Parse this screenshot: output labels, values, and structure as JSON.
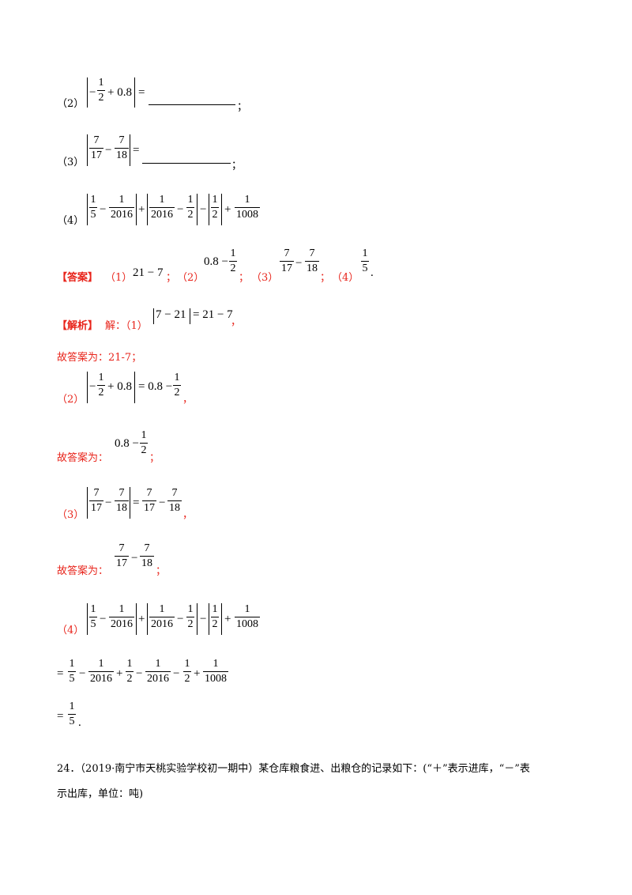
{
  "problems": {
    "p2_label": "（2）",
    "p3_label": "（3）",
    "p4_label": "（4）",
    "eq": "=",
    "semicolon": "；"
  },
  "answer": {
    "tag": "【答案】",
    "a1_label": "（1）",
    "a1_value": "21 − 7",
    "sep": "；",
    "a2_label": "（2）",
    "a3_label": "（3）",
    "a4_label": "（4）",
    "end": "."
  },
  "analysis": {
    "tag": "【解析】",
    "lead": "解：（1）",
    "abs_expr": "7 − 21",
    "rhs": "= 21 − 7",
    "comma": "，",
    "ans1": "故答案为：21-7；",
    "s2_label": "（2）",
    "ans_prefix": "故答案为：",
    "s3_label": "（3）",
    "s4_label": "（4）"
  },
  "math": {
    "one": "1",
    "two": "2",
    "seven": "7",
    "seventeen": "17",
    "eighteen": "18",
    "five": "5",
    "y2016": "2016",
    "y1008": "1008",
    "minus": "−",
    "plus": "+",
    "plus08": "+ 0.8",
    "m08": "0.8 −",
    "eq08": "= 0.8 −",
    "eq": "="
  },
  "question24": {
    "line1": "24．（2019·南宁市天桃实验学校初一期中）某仓库粮食进、出粮仓的记录如下：(“＋”表示进库，“－”表",
    "line2": "示出库，单位：吨)"
  }
}
